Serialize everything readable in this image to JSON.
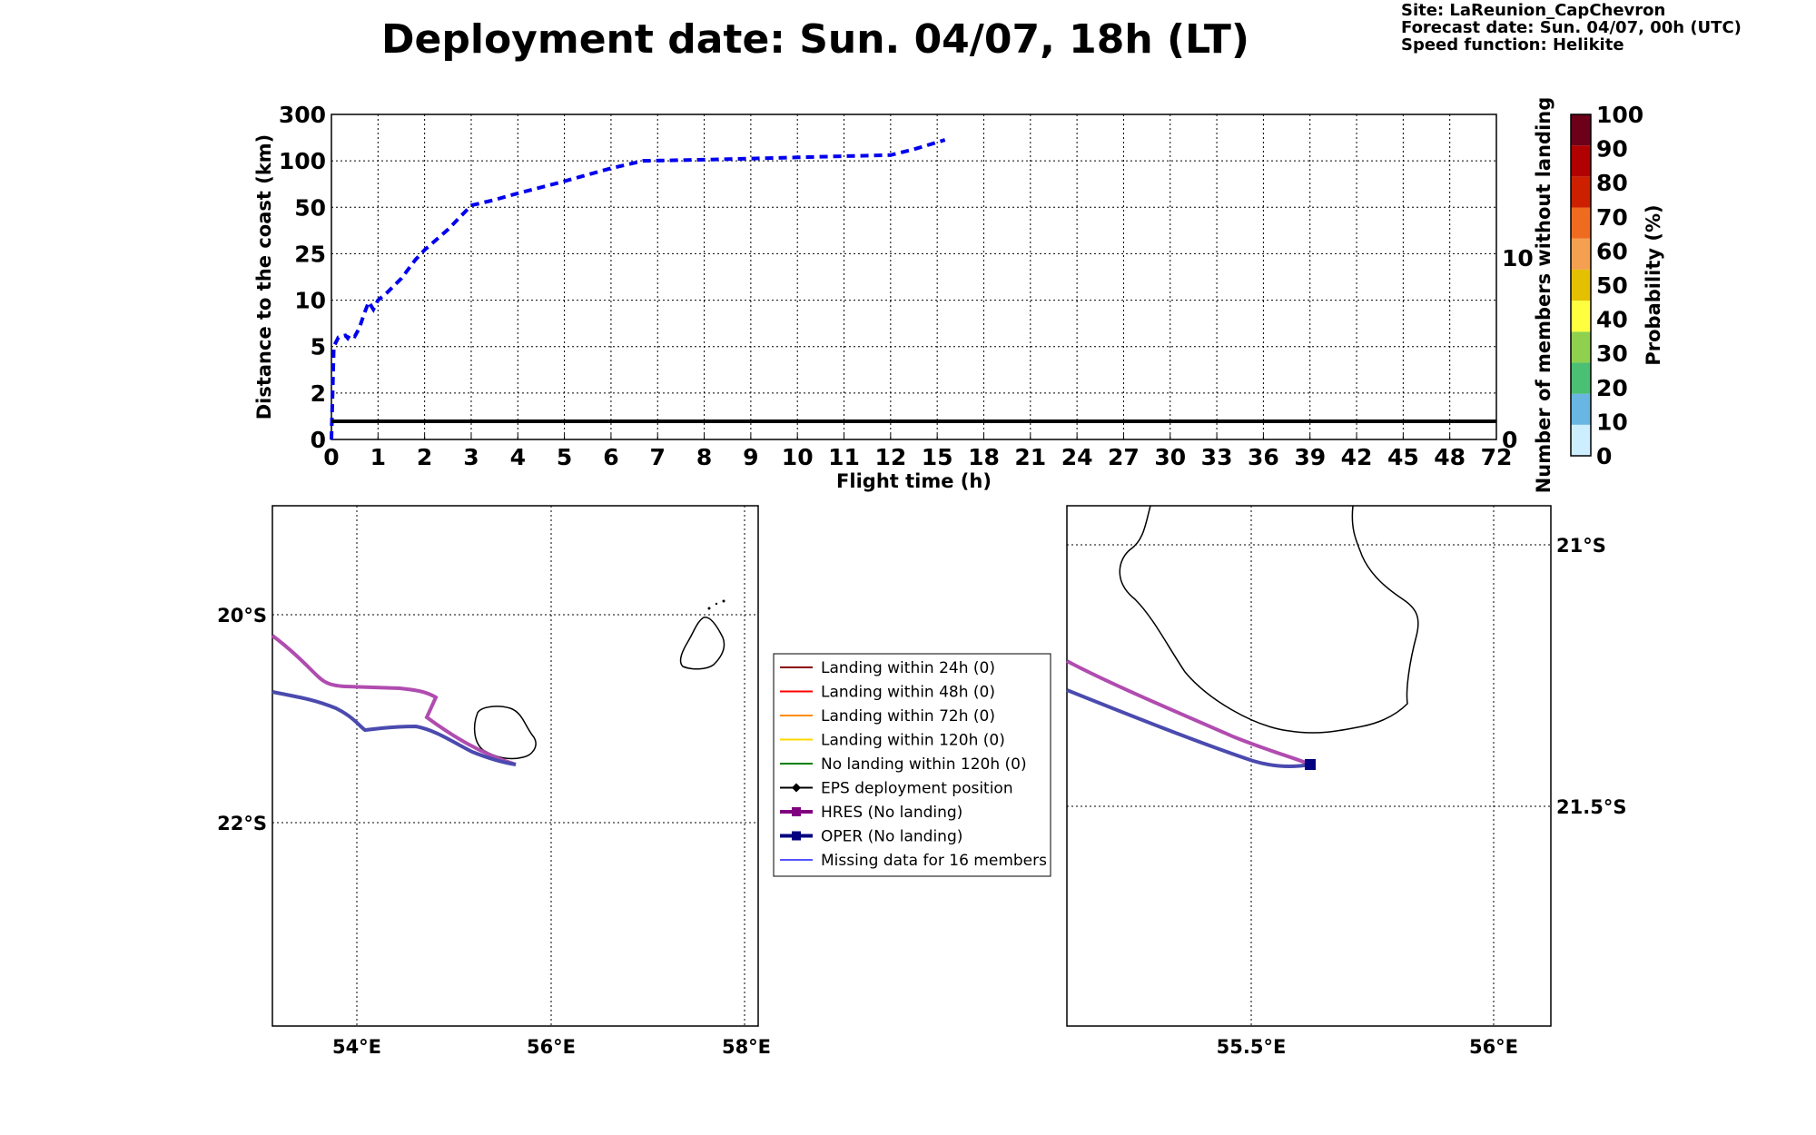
{
  "header": {
    "title": "Deployment date: Sun. 04/07, 18h (LT)",
    "site": "Site: LaReunion_CapChevron",
    "forecast": "Forecast date: Sun. 04/07, 00h (UTC)",
    "speed": "Speed function: Helikite"
  },
  "chart_data": [
    {
      "type": "line",
      "xlabel": "Flight time (h)",
      "ylabel": "Distance to the coast (km)",
      "ylabel_right": "Number of members without landing",
      "x_ticks": [
        "0",
        "1",
        "2",
        "3",
        "4",
        "5",
        "6",
        "7",
        "8",
        "9",
        "10",
        "11",
        "12",
        "15",
        "18",
        "21",
        "24",
        "27",
        "30",
        "33",
        "36",
        "39",
        "42",
        "45",
        "48",
        "72"
      ],
      "y_ticks": [
        "0",
        "2",
        "5",
        "10",
        "25",
        "50",
        "100",
        "300"
      ],
      "y_right_ticks": [
        "0",
        "10"
      ],
      "grid": true,
      "series": [
        {
          "style": "dashed-blue",
          "x": [
            0,
            0.05,
            0.15,
            0.3,
            0.35,
            0.4,
            0.5,
            0.6,
            0.7,
            0.8,
            0.9,
            1.0,
            1.2,
            1.5,
            1.8,
            2.0,
            2.5,
            3.0,
            3.5,
            4.0,
            5.0,
            6.0,
            6.7,
            8.0,
            9.0,
            10.0,
            11.0,
            12.0,
            13.5,
            15.5
          ],
          "y": [
            0,
            5.0,
            6.0,
            6.2,
            5.9,
            6.3,
            6.1,
            7.0,
            8.5,
            9.8,
            9.0,
            10.0,
            12.5,
            17,
            23,
            27,
            38,
            52,
            58,
            65,
            78,
            92,
            100,
            105,
            110,
            115,
            120,
            125,
            150,
            190
          ]
        },
        {
          "style": "solid-black",
          "label": "members",
          "x": [
            0,
            72
          ],
          "y_right": [
            1,
            1
          ]
        }
      ]
    },
    {
      "type": "heatmap",
      "colorbar": true,
      "ylabel": "Probability (%)",
      "ticks": [
        "0",
        "10",
        "20",
        "30",
        "40",
        "50",
        "60",
        "70",
        "80",
        "90",
        "100"
      ],
      "colors": [
        "#cdeeff",
        "#6ab6e3",
        "#4bbf73",
        "#8fd14f",
        "#ffff40",
        "#e3c000",
        "#f5a050",
        "#ef6b20",
        "#cc2000",
        "#b00000",
        "#6b0018"
      ]
    }
  ],
  "maps": {
    "left": {
      "lon_ticks": [
        "54°E",
        "56°E",
        "58°E"
      ],
      "lat_ticks": [
        "20°S",
        "22°S"
      ]
    },
    "right": {
      "lon_ticks": [
        "55.5°E",
        "56°E"
      ],
      "lat_ticks": [
        "21°S",
        "21.5°S"
      ]
    }
  },
  "legend": {
    "items": [
      {
        "label": "Landing within 24h (0)",
        "color": "#8b0000",
        "marker": "none"
      },
      {
        "label": "Landing within 48h (0)",
        "color": "#ff0000",
        "marker": "none"
      },
      {
        "label": "Landing within 72h (0)",
        "color": "#ff8c00",
        "marker": "none"
      },
      {
        "label": "Landing within 120h (0)",
        "color": "#ffd700",
        "marker": "none"
      },
      {
        "label": "No landing within 120h (0)",
        "color": "#008000",
        "marker": "none"
      },
      {
        "label": "EPS deployment position",
        "color": "#000000",
        "marker": "diamond"
      },
      {
        "label": "HRES (No landing)",
        "color": "#800080",
        "marker": "square"
      },
      {
        "label": "OPER (No landing)",
        "color": "#000080",
        "marker": "square"
      },
      {
        "label": "Missing data for 16 members",
        "color": "#5555ff",
        "marker": "none"
      }
    ]
  }
}
